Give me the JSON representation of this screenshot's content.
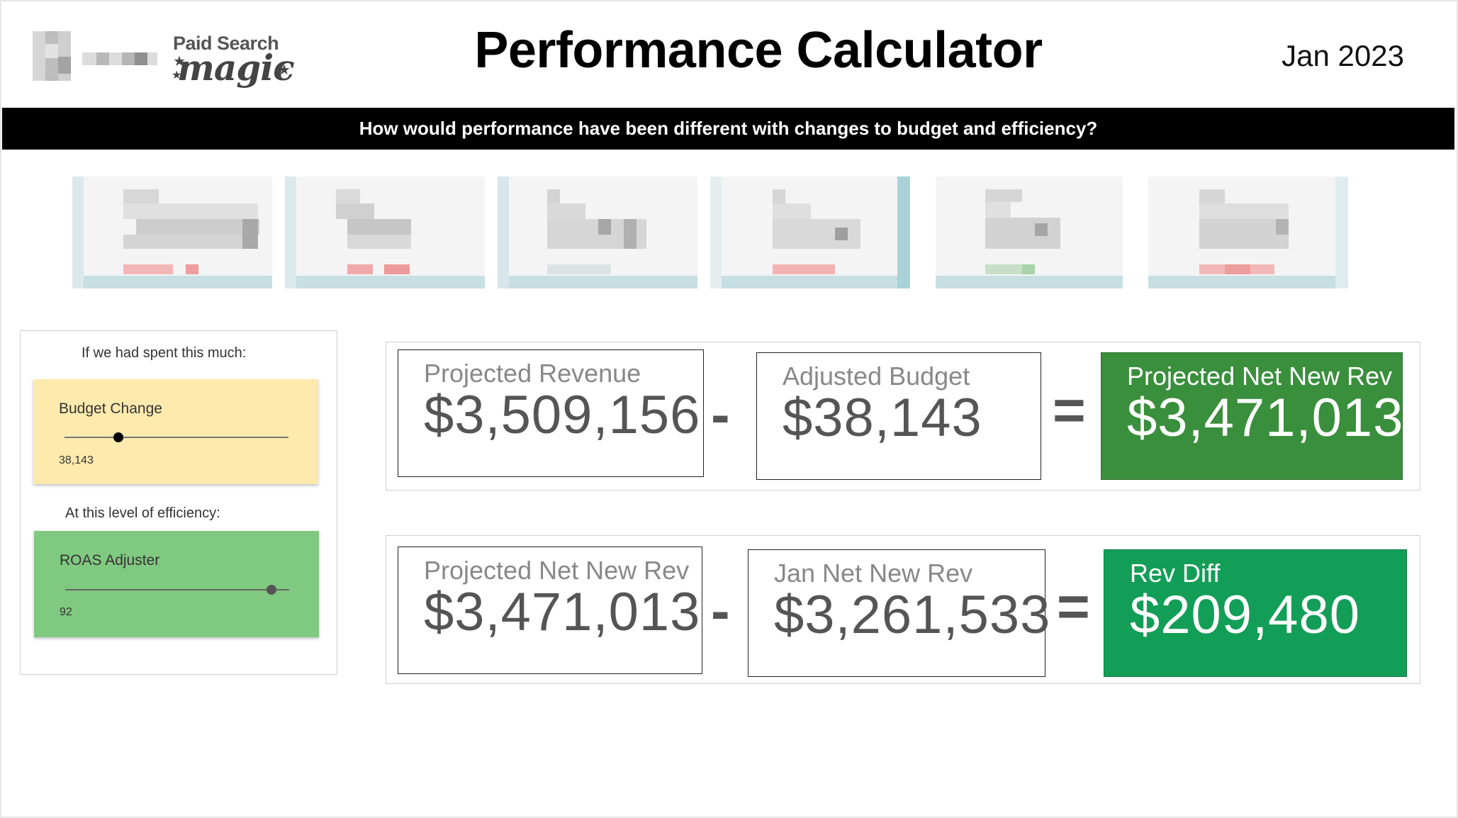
{
  "header": {
    "brand_line1": "Paid Search",
    "brand_line2": "magic",
    "title": "Performance Calculator",
    "date": "Jan 2023"
  },
  "banner": {
    "text": "How would performance have been different with changes to budget and efficiency?"
  },
  "controls": {
    "spend_label": "If we had spent this much:",
    "budget_slider": {
      "name": "Budget Change",
      "value": "38,143",
      "fraction": 0.24
    },
    "efficiency_label": "At this level of efficiency:",
    "roas_slider": {
      "name": "ROAS Adjuster",
      "value": "92",
      "fraction": 0.92
    }
  },
  "row1": {
    "a_label": "Projected Revenue",
    "a_value": "$3,509,156",
    "op1": "-",
    "b_label": "Adjusted Budget",
    "b_value": "$38,143",
    "op2": "=",
    "c_label": "Projected Net New Rev",
    "c_value": "$3,471,013",
    "c_color": "#3a8f3c"
  },
  "row2": {
    "a_label": "Projected Net New Rev",
    "a_value": "$3,471,013",
    "op1": "-",
    "b_label": "Jan Net New Rev",
    "b_value": "$3,261,533",
    "op2": "=",
    "c_label": "Rev Diff",
    "c_value": "$209,480",
    "c_color": "#139e57"
  },
  "colors": {
    "budget_card": "#ffeaae",
    "roas_card": "#80c980",
    "banner": "#000000"
  }
}
